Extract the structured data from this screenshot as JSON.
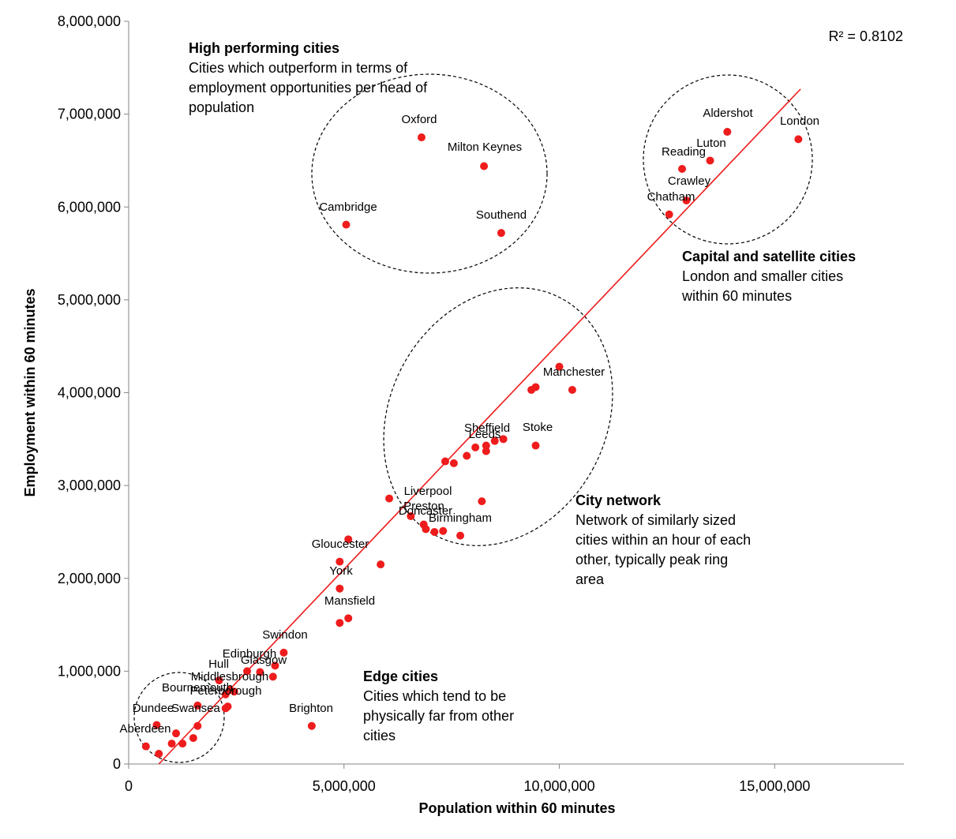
{
  "chart_data": {
    "type": "scatter",
    "title": "",
    "xlabel": "Population within 60 minutes",
    "ylabel": "Employment within 60 minutes",
    "xlim": [
      0,
      18000000
    ],
    "ylim": [
      0,
      8000000
    ],
    "x_ticks": [
      {
        "value": 0,
        "label": "0"
      },
      {
        "value": 5000000,
        "label": "5,000,000"
      },
      {
        "value": 10000000,
        "label": "10,000,000"
      },
      {
        "value": 15000000,
        "label": "15,000,000"
      }
    ],
    "y_ticks": [
      {
        "value": 0,
        "label": "0"
      },
      {
        "value": 1000000,
        "label": "1,000,000"
      },
      {
        "value": 2000000,
        "label": "2,000,000"
      },
      {
        "value": 3000000,
        "label": "3,000,000"
      },
      {
        "value": 4000000,
        "label": "4,000,000"
      },
      {
        "value": 5000000,
        "label": "5,000,000"
      },
      {
        "value": 6000000,
        "label": "6,000,000"
      },
      {
        "value": 7000000,
        "label": "7,000,000"
      },
      {
        "value": 8000000,
        "label": "8,000,000"
      }
    ],
    "grid": false,
    "point_color": "#ee1c1c",
    "trendline": {
      "color": "#ee1c1c",
      "x": [
        700000,
        15600000
      ],
      "y": [
        0,
        7270000
      ],
      "r2_label": "R² = 0.8102"
    },
    "points": [
      {
        "x": 6800000,
        "y": 6750000,
        "label": "Oxford"
      },
      {
        "x": 8250000,
        "y": 6440000,
        "label": "Milton Keynes"
      },
      {
        "x": 5050000,
        "y": 5810000,
        "label": "Cambridge"
      },
      {
        "x": 8650000,
        "y": 5720000,
        "label": "Southend"
      },
      {
        "x": 13900000,
        "y": 6810000,
        "label": "Aldershot"
      },
      {
        "x": 15550000,
        "y": 6730000,
        "label": "London"
      },
      {
        "x": 13500000,
        "y": 6500000,
        "label": "Luton"
      },
      {
        "x": 12850000,
        "y": 6410000,
        "label": "Reading"
      },
      {
        "x": 12950000,
        "y": 6070000,
        "label": "Crawley"
      },
      {
        "x": 12550000,
        "y": 5920000,
        "label": "Chatham"
      },
      {
        "x": 10000000,
        "y": 4280000,
        "label": ""
      },
      {
        "x": 10300000,
        "y": 4030000,
        "label": "Manchester"
      },
      {
        "x": 9450000,
        "y": 4060000,
        "label": ""
      },
      {
        "x": 9350000,
        "y": 4030000,
        "label": ""
      },
      {
        "x": 9450000,
        "y": 3430000,
        "label": "Stoke"
      },
      {
        "x": 8700000,
        "y": 3500000,
        "label": "Sheffield"
      },
      {
        "x": 8500000,
        "y": 3480000,
        "label": ""
      },
      {
        "x": 8300000,
        "y": 3430000,
        "label": "Leeds"
      },
      {
        "x": 8300000,
        "y": 3370000,
        "label": ""
      },
      {
        "x": 8050000,
        "y": 3410000,
        "label": ""
      },
      {
        "x": 7850000,
        "y": 3320000,
        "label": ""
      },
      {
        "x": 7550000,
        "y": 3240000,
        "label": ""
      },
      {
        "x": 7350000,
        "y": 3260000,
        "label": ""
      },
      {
        "x": 6050000,
        "y": 2860000,
        "label": "Liverpool"
      },
      {
        "x": 8200000,
        "y": 2830000,
        "label": ""
      },
      {
        "x": 6550000,
        "y": 2670000,
        "label": "Preston"
      },
      {
        "x": 6850000,
        "y": 2580000,
        "label": "Doncaster"
      },
      {
        "x": 6900000,
        "y": 2530000,
        "label": ""
      },
      {
        "x": 7100000,
        "y": 2500000,
        "label": ""
      },
      {
        "x": 7300000,
        "y": 2510000,
        "label": ""
      },
      {
        "x": 7700000,
        "y": 2460000,
        "label": "Birmingham"
      },
      {
        "x": 5100000,
        "y": 2420000,
        "label": "Gloucester"
      },
      {
        "x": 4900000,
        "y": 2180000,
        "label": ""
      },
      {
        "x": 5850000,
        "y": 2150000,
        "label": ""
      },
      {
        "x": 4900000,
        "y": 1890000,
        "label": "York"
      },
      {
        "x": 5100000,
        "y": 1570000,
        "label": "Mansfield"
      },
      {
        "x": 4900000,
        "y": 1520000,
        "label": ""
      },
      {
        "x": 3600000,
        "y": 1200000,
        "label": "Swindon"
      },
      {
        "x": 3400000,
        "y": 1060000,
        "label": "Glasgow"
      },
      {
        "x": 3050000,
        "y": 990000,
        "label": "Edinburgh"
      },
      {
        "x": 2750000,
        "y": 1000000,
        "label": "Hull"
      },
      {
        "x": 3350000,
        "y": 940000,
        "label": ""
      },
      {
        "x": 2100000,
        "y": 900000,
        "label": "Middlesbrough"
      },
      {
        "x": 2350000,
        "y": 800000,
        "label": ""
      },
      {
        "x": 2250000,
        "y": 750000,
        "label": "Peterborough"
      },
      {
        "x": 2450000,
        "y": 780000,
        "label": ""
      },
      {
        "x": 1600000,
        "y": 630000,
        "label": "Bournemouth"
      },
      {
        "x": 2250000,
        "y": 600000,
        "label": "Swansea"
      },
      {
        "x": 2300000,
        "y": 620000,
        "label": ""
      },
      {
        "x": 4250000,
        "y": 410000,
        "label": "Brighton"
      },
      {
        "x": 1600000,
        "y": 410000,
        "label": ""
      },
      {
        "x": 650000,
        "y": 420000,
        "label": "Dundee"
      },
      {
        "x": 1100000,
        "y": 330000,
        "label": ""
      },
      {
        "x": 1500000,
        "y": 280000,
        "label": ""
      },
      {
        "x": 1000000,
        "y": 220000,
        "label": ""
      },
      {
        "x": 1250000,
        "y": 220000,
        "label": ""
      },
      {
        "x": 400000,
        "y": 190000,
        "label": "Aberdeen"
      },
      {
        "x": 700000,
        "y": 110000,
        "label": ""
      }
    ],
    "annotations": [
      {
        "title": "High performing cities",
        "lines": [
          "Cities which outperform in terms of",
          "employment opportunities per head of",
          "population"
        ]
      },
      {
        "title": "Capital and satellite cities",
        "lines": [
          "London and smaller cities",
          "within 60 minutes"
        ]
      },
      {
        "title": "City network",
        "lines": [
          "Network of similarly sized",
          "cities within an hour of each",
          "other, typically peak ring",
          "area"
        ]
      },
      {
        "title": "Edge cities",
        "lines": [
          "Cities which tend to be",
          "physically far from other",
          "cities"
        ]
      }
    ],
    "clusters": [
      {
        "name": "high-performing"
      },
      {
        "name": "capital-satellite"
      },
      {
        "name": "city-network"
      },
      {
        "name": "edge"
      }
    ]
  }
}
